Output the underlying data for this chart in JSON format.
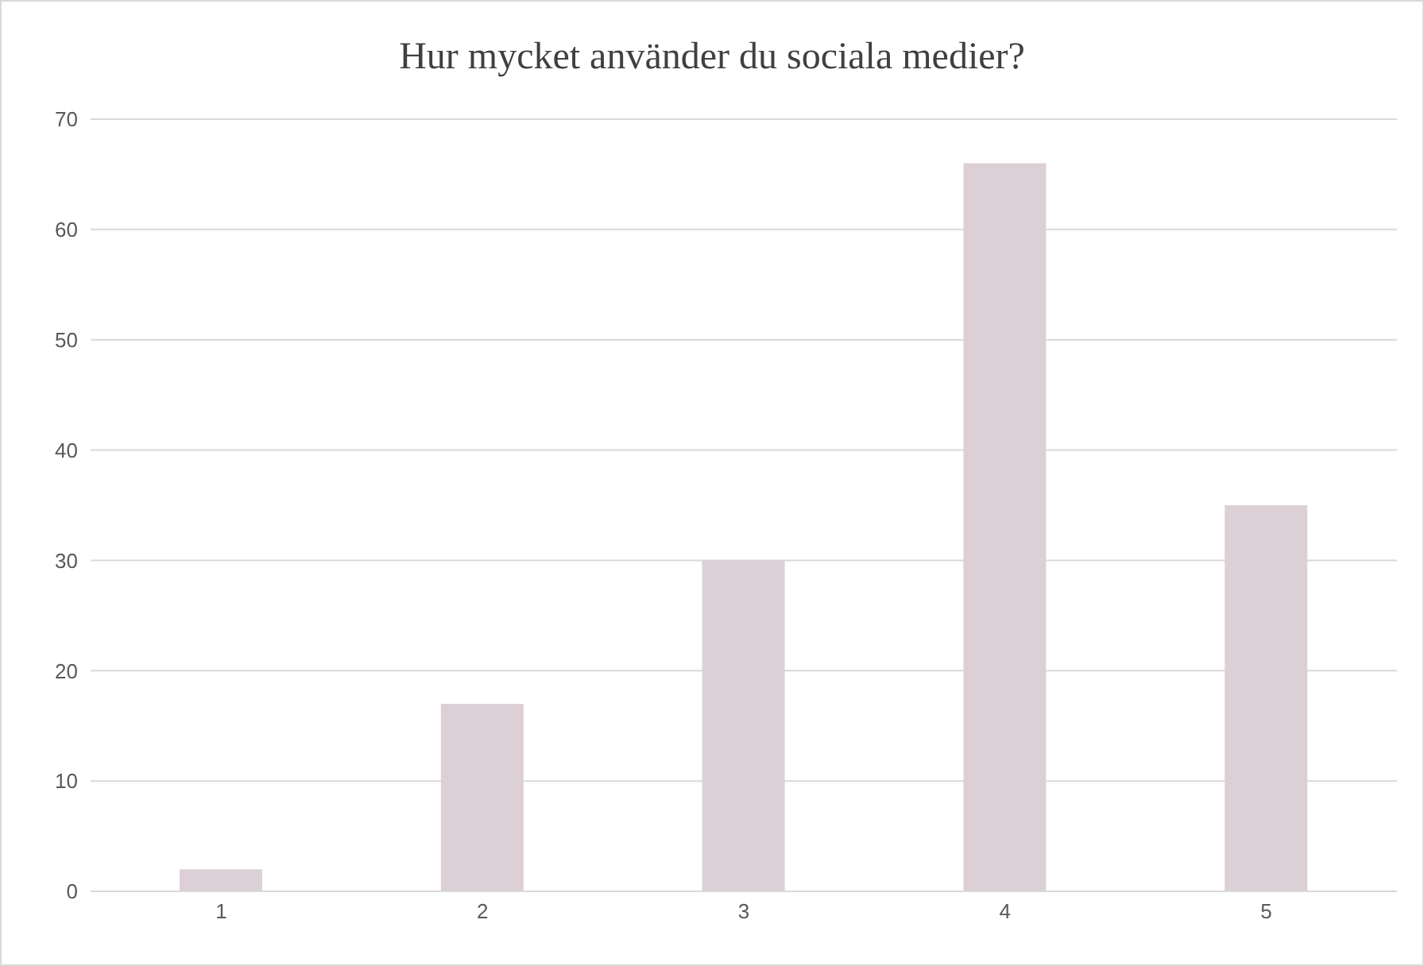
{
  "chart_data": {
    "type": "bar",
    "title": "Hur mycket använder du sociala medier?",
    "categories": [
      "1",
      "2",
      "3",
      "4",
      "5"
    ],
    "values": [
      2,
      17,
      30,
      66,
      35
    ],
    "color": "#dcd0d6",
    "ylim": [
      0,
      70
    ],
    "yticks": [
      0,
      10,
      20,
      30,
      40,
      50,
      60,
      70
    ],
    "grid": "y"
  }
}
